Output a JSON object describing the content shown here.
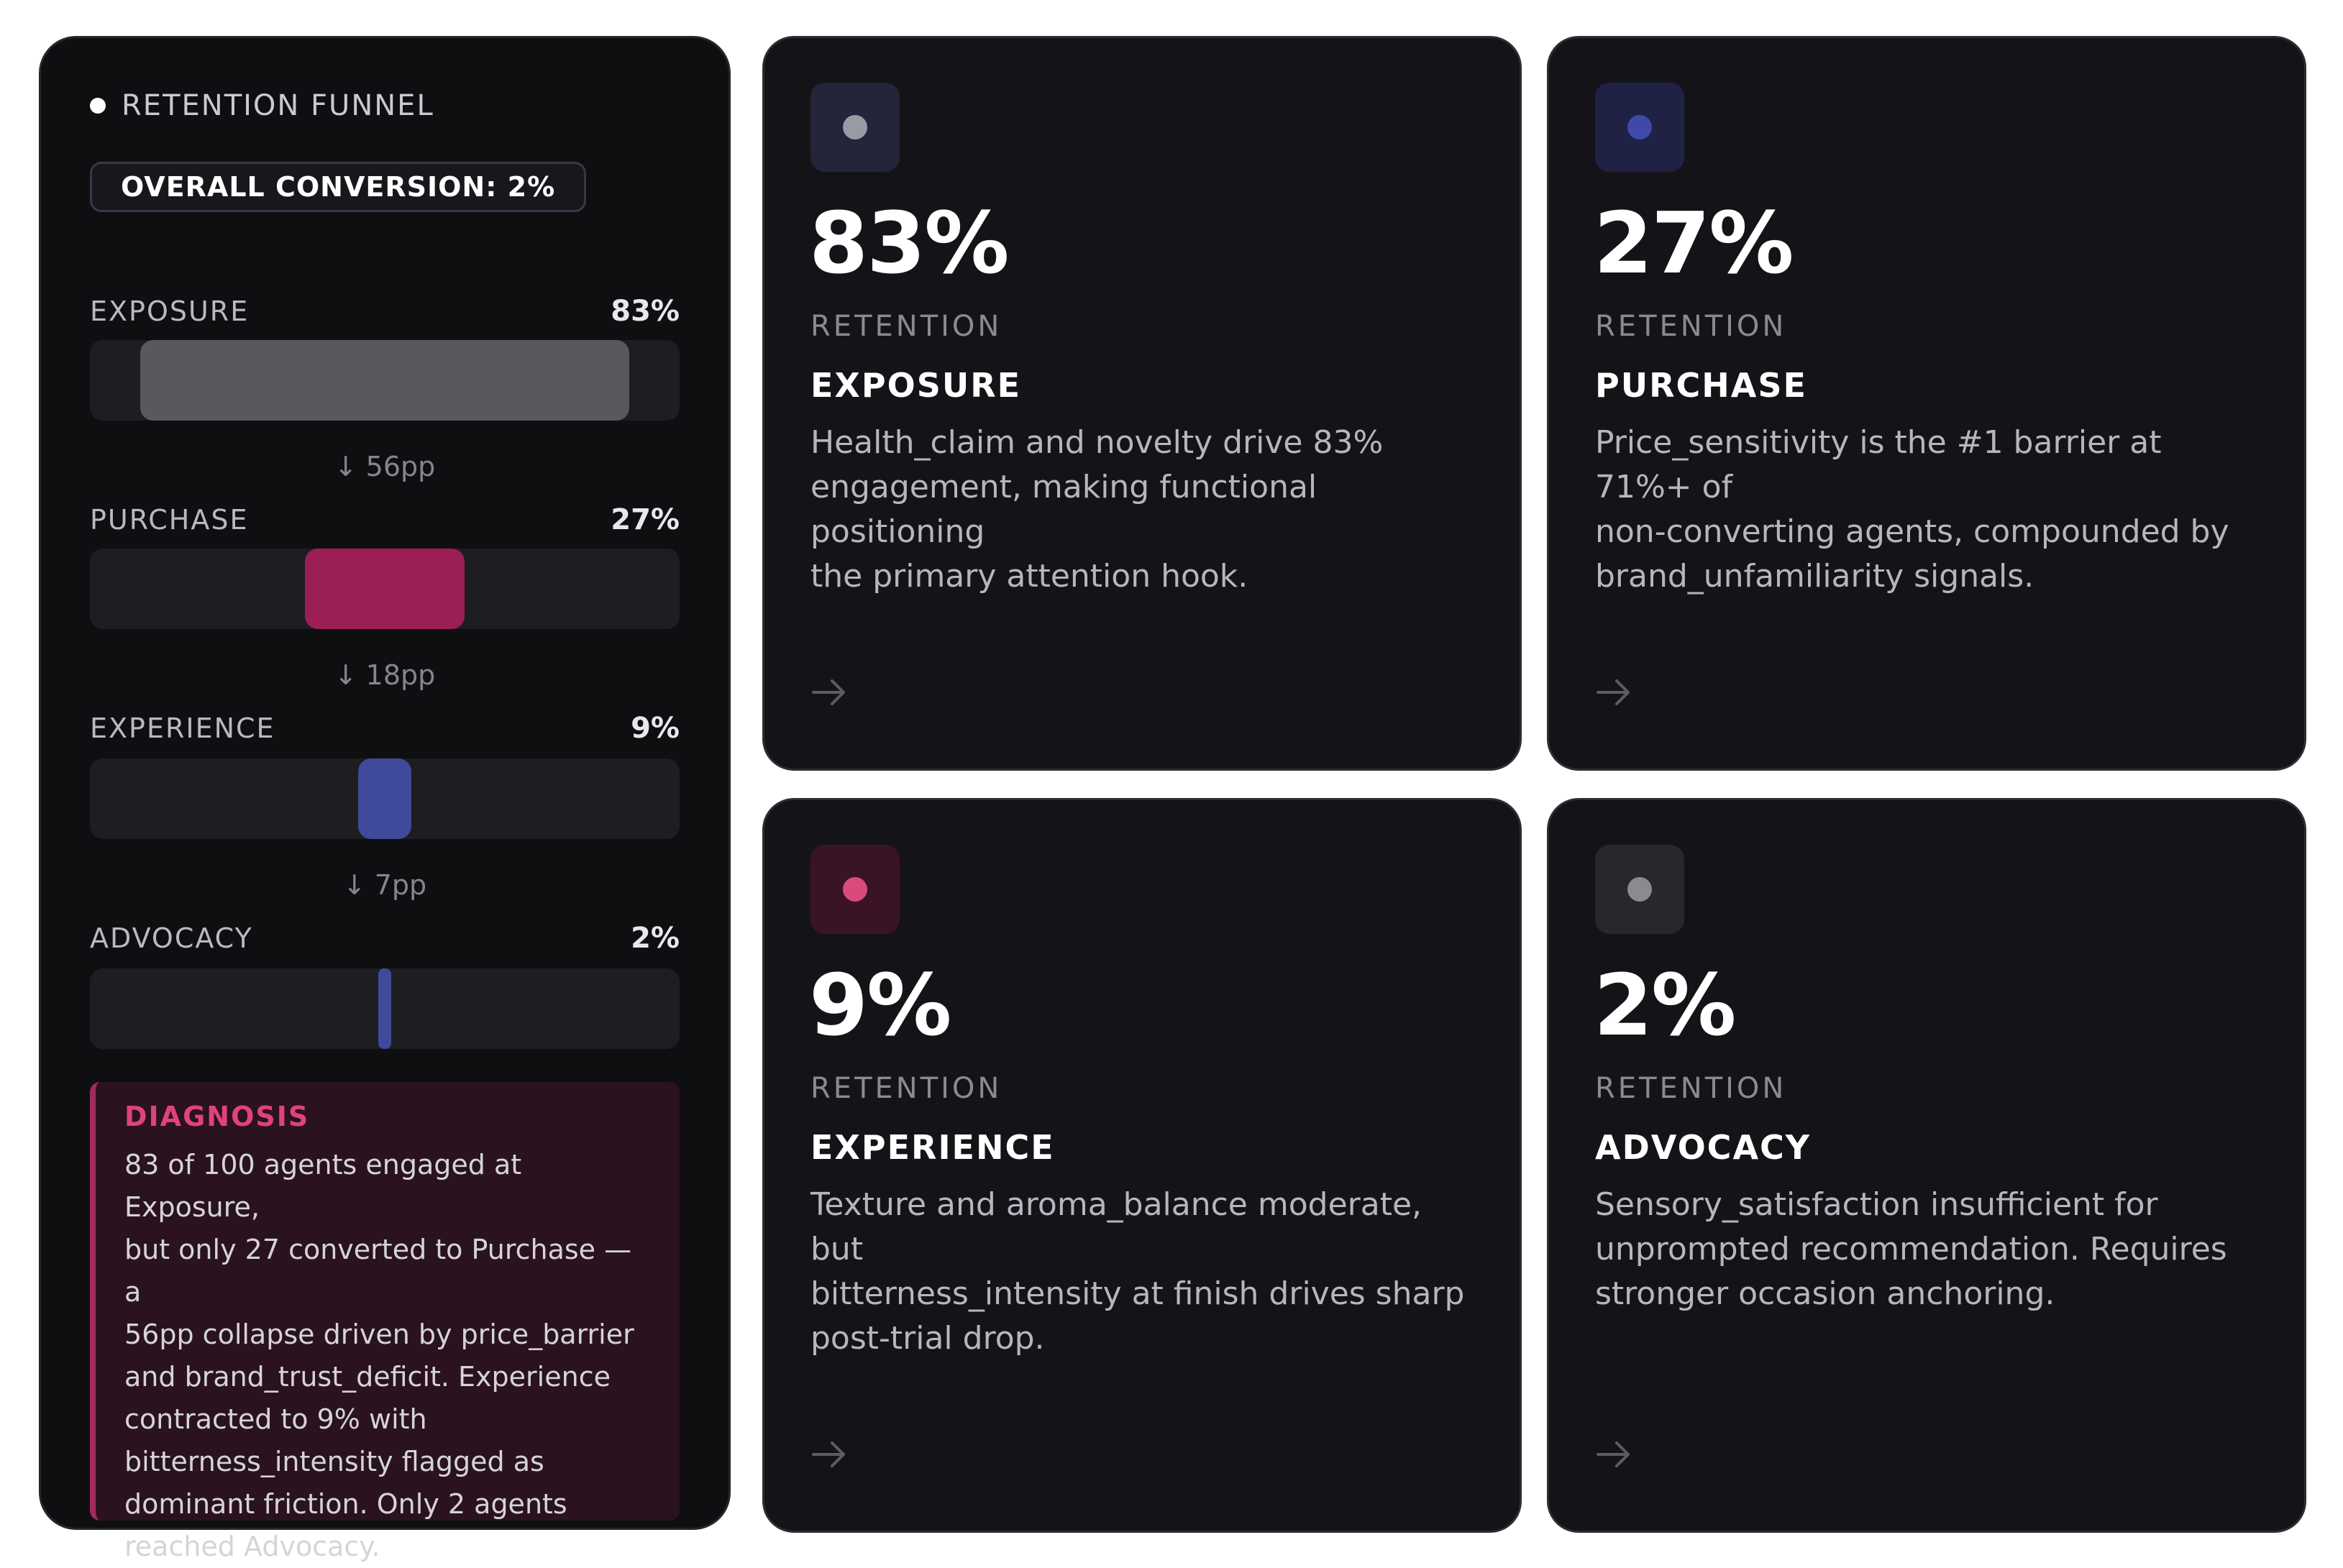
{
  "funnel": {
    "title": "RETENTION FUNNEL",
    "overall_conversion": "OVERALL CONVERSION: 2%",
    "stages": [
      {
        "label": "EXPOSURE",
        "pct": "83%",
        "value": 83,
        "color": "#58585e"
      },
      {
        "label": "PURCHASE",
        "pct": "27%",
        "value": 27,
        "color": "#9b1f55"
      },
      {
        "label": "EXPERIENCE",
        "pct": "9%",
        "value": 9,
        "color": "#3f4a9b"
      },
      {
        "label": "ADVOCACY",
        "pct": "2%",
        "value": 2,
        "color": "#3f4a9b"
      }
    ],
    "drops": [
      "↓ 56pp",
      "↓ 18pp",
      "↓ 7pp"
    ],
    "diagnosis": {
      "title": "DIAGNOSIS",
      "lines": [
        "83 of 100 agents engaged at Exposure,",
        "but only 27 converted to Purchase — a",
        "56pp collapse driven by price_barrier",
        "and brand_trust_deficit. Experience",
        "contracted to 9% with",
        "bitterness_intensity flagged as",
        "dominant friction. Only 2 agents",
        "reached Advocacy."
      ]
    }
  },
  "cards": [
    {
      "pct": "83%",
      "retention_label": "RETENTION",
      "title": "EXPOSURE",
      "icon_bg": "#24243a",
      "icon_color": "#9a9aa2",
      "desc_lines": [
        "Health_claim and novelty drive 83%",
        "engagement, making functional positioning",
        "the primary attention hook."
      ],
      "arrow": "→"
    },
    {
      "pct": "27%",
      "retention_label": "RETENTION",
      "title": "PURCHASE",
      "icon_bg": "#1f2244",
      "icon_color": "#3f4aa8",
      "desc_lines": [
        "Price_sensitivity is the #1 barrier at 71%+ of",
        "non-converting agents, compounded by",
        "brand_unfamiliarity signals."
      ],
      "arrow": "→"
    },
    {
      "pct": "9%",
      "retention_label": "RETENTION",
      "title": "EXPERIENCE",
      "icon_bg": "#3a1424",
      "icon_color": "#d94a7d",
      "desc_lines": [
        "Texture and aroma_balance moderate, but",
        "bitterness_intensity at finish drives sharp",
        "post-trial drop."
      ],
      "arrow": "→"
    },
    {
      "pct": "2%",
      "retention_label": "RETENTION",
      "title": "ADVOCACY",
      "icon_bg": "#28282c",
      "icon_color": "#8a8a90",
      "desc_lines": [
        "Sensory_satisfaction insufficient for",
        "unprompted recommendation. Requires",
        "stronger occasion anchoring."
      ],
      "arrow": "→"
    }
  ]
}
